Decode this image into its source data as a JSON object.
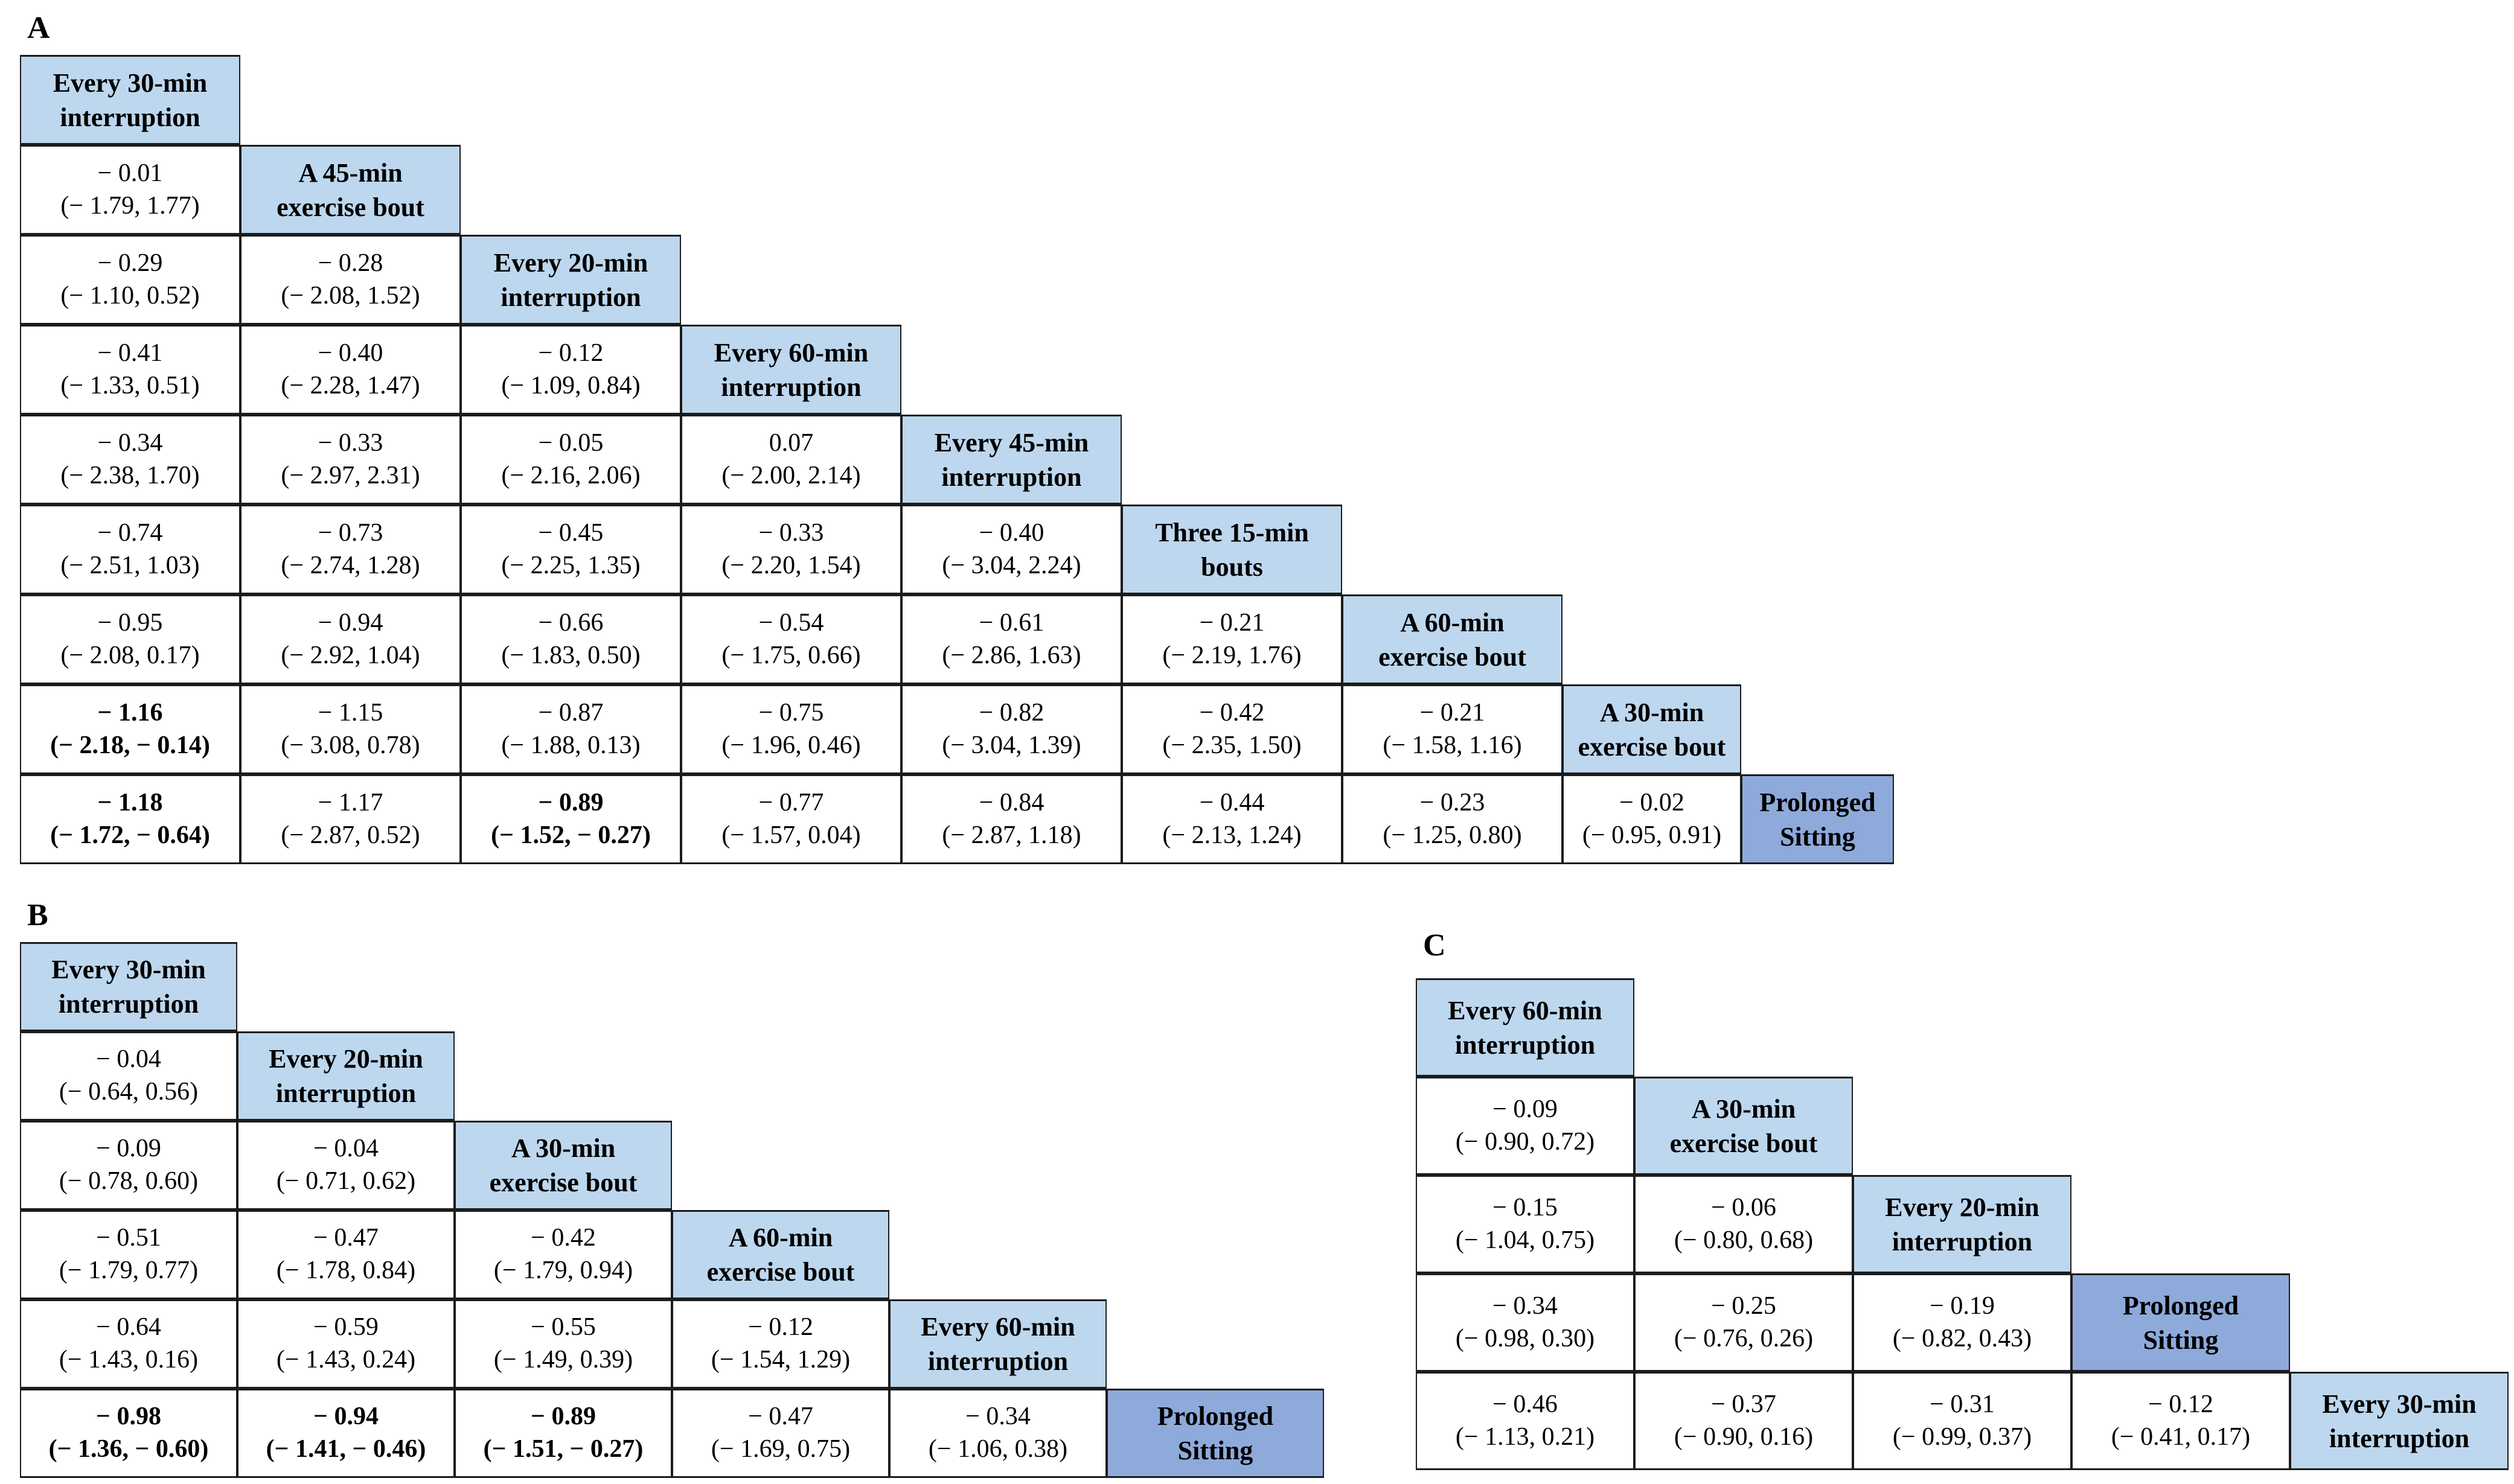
{
  "figure": {
    "colors": {
      "header_fill_light": "#bdd7ee",
      "header_fill_dark": "#8eaadb",
      "border": "#1c1c1c",
      "background": "#ffffff",
      "text": "#000000"
    }
  },
  "chart_data": [
    {
      "type": "table",
      "title": "A",
      "note": "Network meta-analysis league table; cells show mean difference (95% CI); diagonal shows treatments; bold = CI excludes 0; Prolonged Sitting cell shaded darker",
      "treatments": [
        "Every 30-min interruption",
        "A 45-min exercise bout",
        "Every 20-min interruption",
        "Every 60-min interruption",
        "Every 45-min interruption",
        "Three 15-min bouts",
        "A 60-min exercise bout",
        "A 30-min exercise bout",
        "Prolonged Sitting"
      ],
      "rows": [
        {
          "header": "Every 30-min\ninterruption",
          "header_style": "light",
          "cells": []
        },
        {
          "header": "A 45-min\nexercise bout",
          "header_style": "light",
          "cells": [
            {
              "value": -0.01,
              "ci": [
                -1.79,
                1.77
              ],
              "bold": false
            }
          ]
        },
        {
          "header": "Every 20-min\ninterruption",
          "header_style": "light",
          "cells": [
            {
              "value": -0.29,
              "ci": [
                -1.1,
                0.52
              ],
              "bold": false
            },
            {
              "value": -0.28,
              "ci": [
                -2.08,
                1.52
              ],
              "bold": false
            }
          ]
        },
        {
          "header": "Every 60-min\ninterruption",
          "header_style": "light",
          "cells": [
            {
              "value": -0.41,
              "ci": [
                -1.33,
                0.51
              ],
              "bold": false
            },
            {
              "value": -0.4,
              "ci": [
                -2.28,
                1.47
              ],
              "bold": false
            },
            {
              "value": -0.12,
              "ci": [
                -1.09,
                0.84
              ],
              "bold": false
            }
          ]
        },
        {
          "header": "Every 45-min\ninterruption",
          "header_style": "light",
          "cells": [
            {
              "value": -0.34,
              "ci": [
                -2.38,
                1.7
              ],
              "bold": false
            },
            {
              "value": -0.33,
              "ci": [
                -2.97,
                2.31
              ],
              "bold": false
            },
            {
              "value": -0.05,
              "ci": [
                -2.16,
                2.06
              ],
              "bold": false
            },
            {
              "value": 0.07,
              "ci": [
                -2.0,
                2.14
              ],
              "bold": false
            }
          ]
        },
        {
          "header": "Three 15-min\nbouts",
          "header_style": "light",
          "cells": [
            {
              "value": -0.74,
              "ci": [
                -2.51,
                1.03
              ],
              "bold": false
            },
            {
              "value": -0.73,
              "ci": [
                -2.74,
                1.28
              ],
              "bold": false
            },
            {
              "value": -0.45,
              "ci": [
                -2.25,
                1.35
              ],
              "bold": false
            },
            {
              "value": -0.33,
              "ci": [
                -2.2,
                1.54
              ],
              "bold": false
            },
            {
              "value": -0.4,
              "ci": [
                -3.04,
                2.24
              ],
              "bold": false
            }
          ]
        },
        {
          "header": "A 60-min\nexercise bout",
          "header_style": "light",
          "cells": [
            {
              "value": -0.95,
              "ci": [
                -2.08,
                0.17
              ],
              "bold": false
            },
            {
              "value": -0.94,
              "ci": [
                -2.92,
                1.04
              ],
              "bold": false
            },
            {
              "value": -0.66,
              "ci": [
                -1.83,
                0.5
              ],
              "bold": false
            },
            {
              "value": -0.54,
              "ci": [
                -1.75,
                0.66
              ],
              "bold": false
            },
            {
              "value": -0.61,
              "ci": [
                -2.86,
                1.63
              ],
              "bold": false
            },
            {
              "value": -0.21,
              "ci": [
                -2.19,
                1.76
              ],
              "bold": false
            }
          ]
        },
        {
          "header": "A 30-min\nexercise bout",
          "header_style": "light",
          "cells": [
            {
              "value": -1.16,
              "ci": [
                -2.18,
                -0.14
              ],
              "bold": true
            },
            {
              "value": -1.15,
              "ci": [
                -3.08,
                0.78
              ],
              "bold": false
            },
            {
              "value": -0.87,
              "ci": [
                -1.88,
                0.13
              ],
              "bold": false
            },
            {
              "value": -0.75,
              "ci": [
                -1.96,
                0.46
              ],
              "bold": false
            },
            {
              "value": -0.82,
              "ci": [
                -3.04,
                1.39
              ],
              "bold": false
            },
            {
              "value": -0.42,
              "ci": [
                -2.35,
                1.5
              ],
              "bold": false
            },
            {
              "value": -0.21,
              "ci": [
                -1.58,
                1.16
              ],
              "bold": false
            }
          ]
        },
        {
          "header": "Prolonged\nSitting",
          "header_style": "dark",
          "cells": [
            {
              "value": -1.18,
              "ci": [
                -1.72,
                -0.64
              ],
              "bold": true
            },
            {
              "value": -1.17,
              "ci": [
                -2.87,
                0.52
              ],
              "bold": false
            },
            {
              "value": -0.89,
              "ci": [
                -1.52,
                -0.27
              ],
              "bold": true
            },
            {
              "value": -0.77,
              "ci": [
                -1.57,
                0.04
              ],
              "bold": false
            },
            {
              "value": -0.84,
              "ci": [
                -2.87,
                1.18
              ],
              "bold": false
            },
            {
              "value": -0.44,
              "ci": [
                -2.13,
                1.24
              ],
              "bold": false
            },
            {
              "value": -0.23,
              "ci": [
                -1.25,
                0.8
              ],
              "bold": false
            },
            {
              "value": -0.02,
              "ci": [
                -0.95,
                0.91
              ],
              "bold": false
            }
          ]
        }
      ]
    },
    {
      "type": "table",
      "title": "B",
      "treatments": [
        "Every 30-min interruption",
        "Every 20-min interruption",
        "A 30-min exercise bout",
        "A 60-min exercise bout",
        "Every 60-min interruption",
        "Prolonged Sitting"
      ],
      "rows": [
        {
          "header": "Every 30-min\ninterruption",
          "header_style": "light",
          "cells": []
        },
        {
          "header": "Every 20-min\ninterruption",
          "header_style": "light",
          "cells": [
            {
              "value": -0.04,
              "ci": [
                -0.64,
                0.56
              ],
              "bold": false
            }
          ]
        },
        {
          "header": "A 30-min\nexercise bout",
          "header_style": "light",
          "cells": [
            {
              "value": -0.09,
              "ci": [
                -0.78,
                0.6
              ],
              "bold": false
            },
            {
              "value": -0.04,
              "ci": [
                -0.71,
                0.62
              ],
              "bold": false
            }
          ]
        },
        {
          "header": "A 60-min\nexercise bout",
          "header_style": "light",
          "cells": [
            {
              "value": -0.51,
              "ci": [
                -1.79,
                0.77
              ],
              "bold": false
            },
            {
              "value": -0.47,
              "ci": [
                -1.78,
                0.84
              ],
              "bold": false
            },
            {
              "value": -0.42,
              "ci": [
                -1.79,
                0.94
              ],
              "bold": false
            }
          ]
        },
        {
          "header": "Every 60-min\ninterruption",
          "header_style": "light",
          "cells": [
            {
              "value": -0.64,
              "ci": [
                -1.43,
                0.16
              ],
              "bold": false
            },
            {
              "value": -0.59,
              "ci": [
                -1.43,
                0.24
              ],
              "bold": false
            },
            {
              "value": -0.55,
              "ci": [
                -1.49,
                0.39
              ],
              "bold": false
            },
            {
              "value": -0.12,
              "ci": [
                -1.54,
                1.29
              ],
              "bold": false
            }
          ]
        },
        {
          "header": "Prolonged\nSitting",
          "header_style": "dark",
          "cells": [
            {
              "value": -0.98,
              "ci": [
                -1.36,
                -0.6
              ],
              "bold": true
            },
            {
              "value": -0.94,
              "ci": [
                -1.41,
                -0.46
              ],
              "bold": true
            },
            {
              "value": -0.89,
              "ci": [
                -1.51,
                -0.27
              ],
              "bold": true
            },
            {
              "value": -0.47,
              "ci": [
                -1.69,
                0.75
              ],
              "bold": false
            },
            {
              "value": -0.34,
              "ci": [
                -1.06,
                0.38
              ],
              "bold": false
            }
          ]
        }
      ]
    },
    {
      "type": "table",
      "title": "C",
      "treatments": [
        "Every 60-min interruption",
        "A 30-min exercise bout",
        "Every 20-min interruption",
        "Prolonged Sitting",
        "Every 30-min interruption"
      ],
      "rows": [
        {
          "header": "Every 60-min\ninterruption",
          "header_style": "light",
          "cells": []
        },
        {
          "header": "A 30-min\nexercise bout",
          "header_style": "light",
          "cells": [
            {
              "value": -0.09,
              "ci": [
                -0.9,
                0.72
              ],
              "bold": false
            }
          ]
        },
        {
          "header": "Every 20-min\ninterruption",
          "header_style": "light",
          "cells": [
            {
              "value": -0.15,
              "ci": [
                -1.04,
                0.75
              ],
              "bold": false
            },
            {
              "value": -0.06,
              "ci": [
                -0.8,
                0.68
              ],
              "bold": false
            }
          ]
        },
        {
          "header": "Prolonged\nSitting",
          "header_style": "dark",
          "cells": [
            {
              "value": -0.34,
              "ci": [
                -0.98,
                0.3
              ],
              "bold": false
            },
            {
              "value": -0.25,
              "ci": [
                -0.76,
                0.26
              ],
              "bold": false
            },
            {
              "value": -0.19,
              "ci": [
                -0.82,
                0.43
              ],
              "bold": false
            }
          ]
        },
        {
          "header": "Every 30-min\ninterruption",
          "header_style": "light",
          "cells": [
            {
              "value": -0.46,
              "ci": [
                -1.13,
                0.21
              ],
              "bold": false
            },
            {
              "value": -0.37,
              "ci": [
                -0.9,
                0.16
              ],
              "bold": false
            },
            {
              "value": -0.31,
              "ci": [
                -0.99,
                0.37
              ],
              "bold": false
            },
            {
              "value": -0.12,
              "ci": [
                -0.41,
                0.17
              ],
              "bold": false
            }
          ]
        }
      ]
    }
  ]
}
